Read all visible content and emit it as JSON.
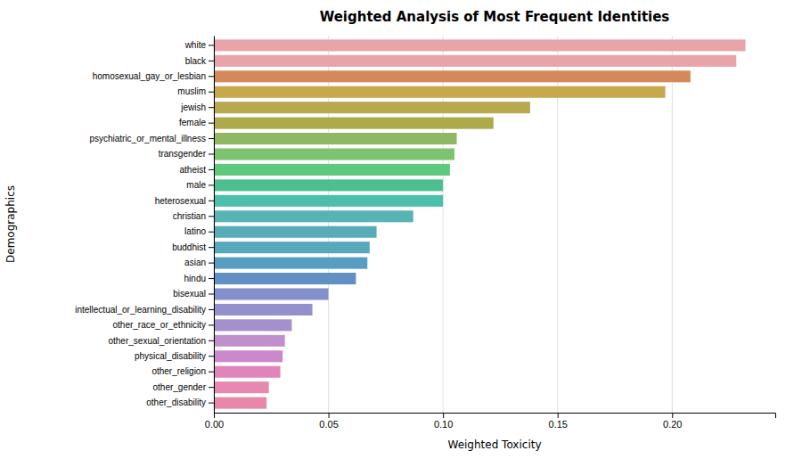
{
  "chart_data": {
    "type": "bar",
    "orientation": "horizontal",
    "title": "Weighted Analysis of Most Frequent Identities",
    "xlabel": "Weighted Toxicity",
    "ylabel": "Demographics",
    "categories": [
      "white",
      "black",
      "homosexual_gay_or_lesbian",
      "muslim",
      "jewish",
      "female",
      "psychiatric_or_mental_illness",
      "transgender",
      "atheist",
      "male",
      "heterosexual",
      "christian",
      "latino",
      "buddhist",
      "asian",
      "hindu",
      "bisexual",
      "intellectual_or_learning_disability",
      "other_race_or_ethnicity",
      "other_sexual_orientation",
      "physical_disability",
      "other_religion",
      "other_gender",
      "other_disability"
    ],
    "values": [
      0.232,
      0.228,
      0.208,
      0.197,
      0.138,
      0.122,
      0.106,
      0.105,
      0.103,
      0.1,
      0.1,
      0.087,
      0.071,
      0.068,
      0.067,
      0.062,
      0.05,
      0.043,
      0.034,
      0.031,
      0.03,
      0.029,
      0.024,
      0.023
    ],
    "colors": [
      "#e8a4a8",
      "#e8a4a8",
      "#d4895c",
      "#c8a84c",
      "#b8a850",
      "#acaa4a",
      "#90b864",
      "#7ec470",
      "#5ec87c",
      "#4cbf90",
      "#4cbfaa",
      "#58b4b4",
      "#58acb8",
      "#58a8bc",
      "#589ec0",
      "#6090c4",
      "#8490cc",
      "#9490cc",
      "#a490cc",
      "#c090cc",
      "#cc88cc",
      "#e084bc",
      "#e888b0",
      "#e888a8"
    ],
    "xlim": [
      0.0,
      0.245
    ],
    "xticks": [
      {
        "value": 0,
        "label": "0.00"
      },
      0.05,
      {
        "value": 0.1,
        "label": "0.10"
      },
      0.15,
      {
        "value": 0.2,
        "label": "0.20"
      }
    ],
    "grid": true
  }
}
